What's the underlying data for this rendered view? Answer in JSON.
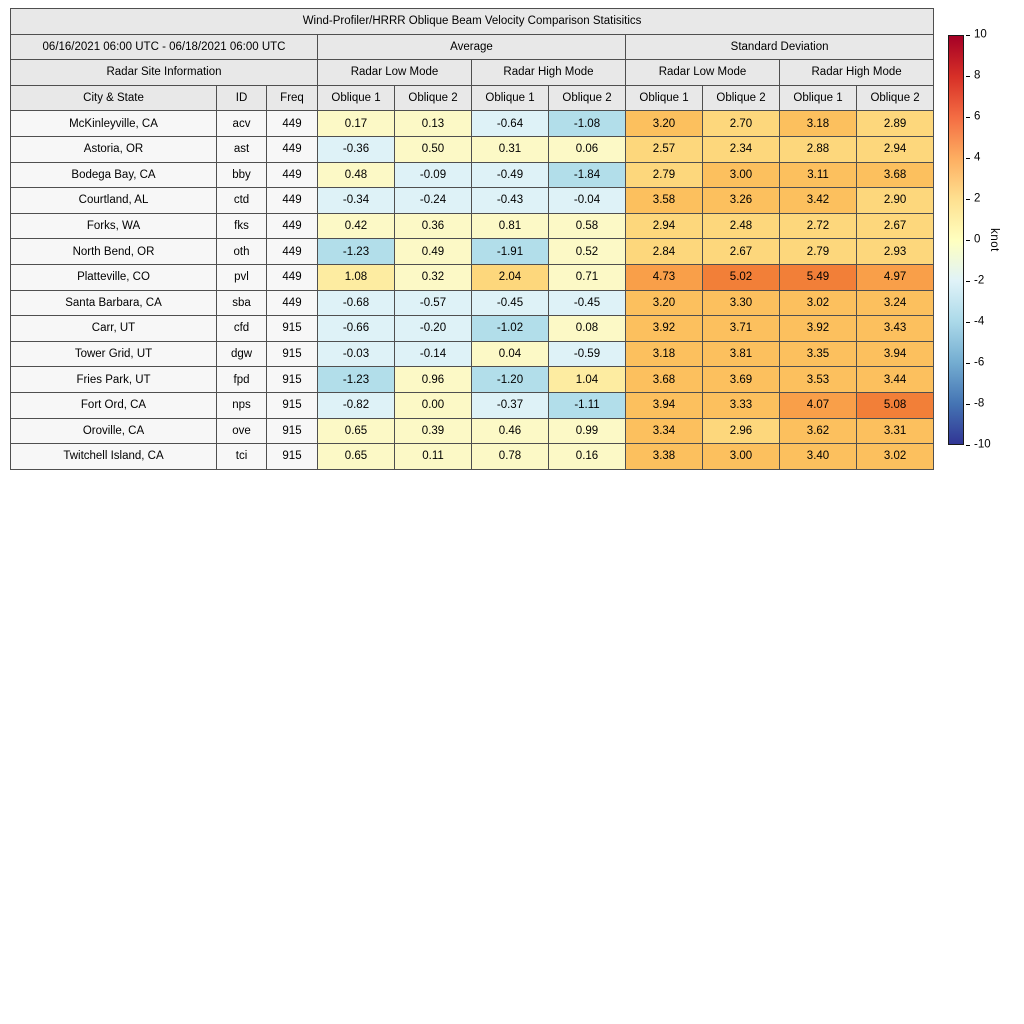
{
  "title": "Wind-Profiler/HRRR Oblique Beam Velocity Comparison Statisitics",
  "period": "06/16/2021 06:00 UTC - 06/18/2021 06:00 UTC",
  "groups": {
    "average": "Average",
    "stddev": "Standard Deviation",
    "site_info": "Radar Site Information",
    "low_mode": "Radar Low Mode",
    "high_mode": "Radar High Mode"
  },
  "columns": {
    "city": "City & State",
    "id": "ID",
    "freq": "Freq",
    "oblique1": "Oblique 1",
    "oblique2": "Oblique 2"
  },
  "colorbar": {
    "label": "knot",
    "min": -10,
    "max": 10,
    "ticks": [
      10,
      8,
      6,
      4,
      2,
      0,
      -2,
      -4,
      -6,
      -8,
      -10
    ],
    "colors": [
      "#313695",
      "#4575b4",
      "#74add1",
      "#abd9e9",
      "#e0f3f8",
      "#ffffbf",
      "#fee090",
      "#fdae61",
      "#f46d43",
      "#d73027",
      "#a50026"
    ],
    "cell_colors": {
      "-3": "#7fc0dc",
      "-2": "#b2deea",
      "-1": "#def2f7",
      "0": "#fcf9c6",
      "1": "#fdeca1",
      "2": "#fdd77c",
      "3": "#fcc05e",
      "4": "#f99f49",
      "5": "#f27f38",
      "6": "#ea5e30"
    }
  },
  "chart_data": {
    "type": "heatmap",
    "title": "Wind-Profiler/HRRR Oblique Beam Velocity Comparison Statisitics",
    "value_unit": "knot",
    "vmin": -10,
    "vmax": 10,
    "value_columns": [
      "Average Radar Low Mode Oblique 1",
      "Average Radar Low Mode Oblique 2",
      "Average Radar High Mode Oblique 1",
      "Average Radar High Mode Oblique 2",
      "Standard Deviation Radar Low Mode Oblique 1",
      "Standard Deviation Radar Low Mode Oblique 2",
      "Standard Deviation Radar High Mode Oblique 1",
      "Standard Deviation Radar High Mode Oblique 2"
    ],
    "rows": [
      {
        "city": "McKinleyville, CA",
        "id": "acv",
        "freq": "449",
        "values": [
          0.17,
          0.13,
          -0.64,
          -1.08,
          3.2,
          2.7,
          3.18,
          2.89
        ]
      },
      {
        "city": "Astoria, OR",
        "id": "ast",
        "freq": "449",
        "values": [
          -0.36,
          0.5,
          0.31,
          0.06,
          2.57,
          2.34,
          2.88,
          2.94
        ]
      },
      {
        "city": "Bodega Bay, CA",
        "id": "bby",
        "freq": "449",
        "values": [
          0.48,
          -0.09,
          -0.49,
          -1.84,
          2.79,
          3.0,
          3.11,
          3.68
        ]
      },
      {
        "city": "Courtland, AL",
        "id": "ctd",
        "freq": "449",
        "values": [
          -0.34,
          -0.24,
          -0.43,
          -0.04,
          3.58,
          3.26,
          3.42,
          2.9
        ]
      },
      {
        "city": "Forks, WA",
        "id": "fks",
        "freq": "449",
        "values": [
          0.42,
          0.36,
          0.81,
          0.58,
          2.94,
          2.48,
          2.72,
          2.67
        ]
      },
      {
        "city": "North Bend, OR",
        "id": "oth",
        "freq": "449",
        "values": [
          -1.23,
          0.49,
          -1.91,
          0.52,
          2.84,
          2.67,
          2.79,
          2.93
        ]
      },
      {
        "city": "Platteville, CO",
        "id": "pvl",
        "freq": "449",
        "values": [
          1.08,
          0.32,
          2.04,
          0.71,
          4.73,
          5.02,
          5.49,
          4.97
        ]
      },
      {
        "city": "Santa Barbara, CA",
        "id": "sba",
        "freq": "449",
        "values": [
          -0.68,
          -0.57,
          -0.45,
          -0.45,
          3.2,
          3.3,
          3.02,
          3.24
        ]
      },
      {
        "city": "Carr, UT",
        "id": "cfd",
        "freq": "915",
        "values": [
          -0.66,
          -0.2,
          -1.02,
          0.08,
          3.92,
          3.71,
          3.92,
          3.43
        ]
      },
      {
        "city": "Tower Grid, UT",
        "id": "dgw",
        "freq": "915",
        "values": [
          -0.03,
          -0.14,
          0.04,
          -0.59,
          3.18,
          3.81,
          3.35,
          3.94
        ]
      },
      {
        "city": "Fries Park, UT",
        "id": "fpd",
        "freq": "915",
        "values": [
          -1.23,
          0.96,
          -1.2,
          1.04,
          3.68,
          3.69,
          3.53,
          3.44
        ]
      },
      {
        "city": "Fort Ord, CA",
        "id": "nps",
        "freq": "915",
        "values": [
          -0.82,
          0.0,
          -0.37,
          -1.11,
          3.94,
          3.33,
          4.07,
          5.08
        ]
      },
      {
        "city": "Oroville, CA",
        "id": "ove",
        "freq": "915",
        "values": [
          0.65,
          0.39,
          0.46,
          0.99,
          3.34,
          2.96,
          3.62,
          3.31
        ]
      },
      {
        "city": "Twitchell Island, CA",
        "id": "tci",
        "freq": "915",
        "values": [
          0.65,
          0.11,
          0.78,
          0.16,
          3.38,
          3.0,
          3.4,
          3.02
        ]
      }
    ]
  }
}
